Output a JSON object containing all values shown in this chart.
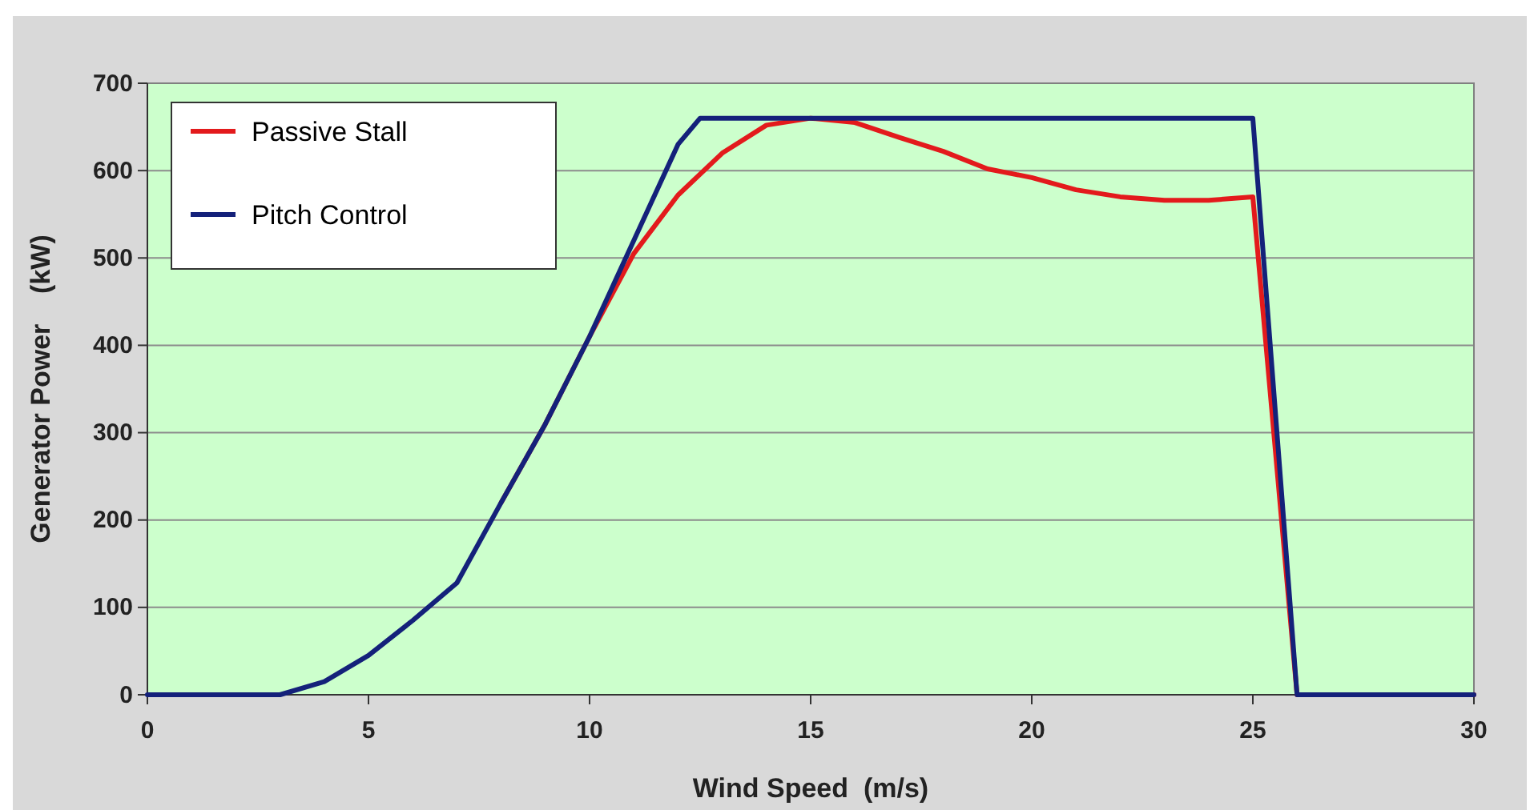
{
  "chart_data": {
    "type": "line",
    "xlabel": "Wind Speed  (m/s)",
    "ylabel": "Generator Power    (kW)",
    "xlim": [
      0,
      30
    ],
    "xticks": [
      0,
      5,
      10,
      15,
      20,
      25,
      30
    ],
    "ylim": [
      0,
      700
    ],
    "yticks": [
      0,
      100,
      200,
      300,
      400,
      500,
      600,
      700
    ],
    "grid": "y",
    "legend": "top left",
    "marker": "none",
    "line_style": "solid",
    "series": [
      {
        "name": "Passive Stall",
        "color": "#e31a1c",
        "x": [
          8,
          9,
          10,
          11,
          12,
          13,
          14,
          15,
          16,
          17,
          18,
          19,
          20,
          21,
          22,
          23,
          24,
          25,
          26,
          30
        ],
        "values": [
          220,
          310,
          410,
          505,
          572,
          620,
          652,
          660,
          655,
          638,
          622,
          602,
          592,
          578,
          570,
          566,
          566,
          570,
          0,
          0
        ]
      },
      {
        "name": "Pitch Control",
        "color": "#14217a",
        "x": [
          0,
          3,
          4,
          5,
          6,
          7,
          8,
          9,
          10,
          11,
          12,
          12.5,
          25,
          26,
          30
        ],
        "values": [
          0,
          0,
          15,
          45,
          85,
          128,
          220,
          310,
          410,
          520,
          630,
          660,
          660,
          0,
          0
        ]
      }
    ]
  }
}
